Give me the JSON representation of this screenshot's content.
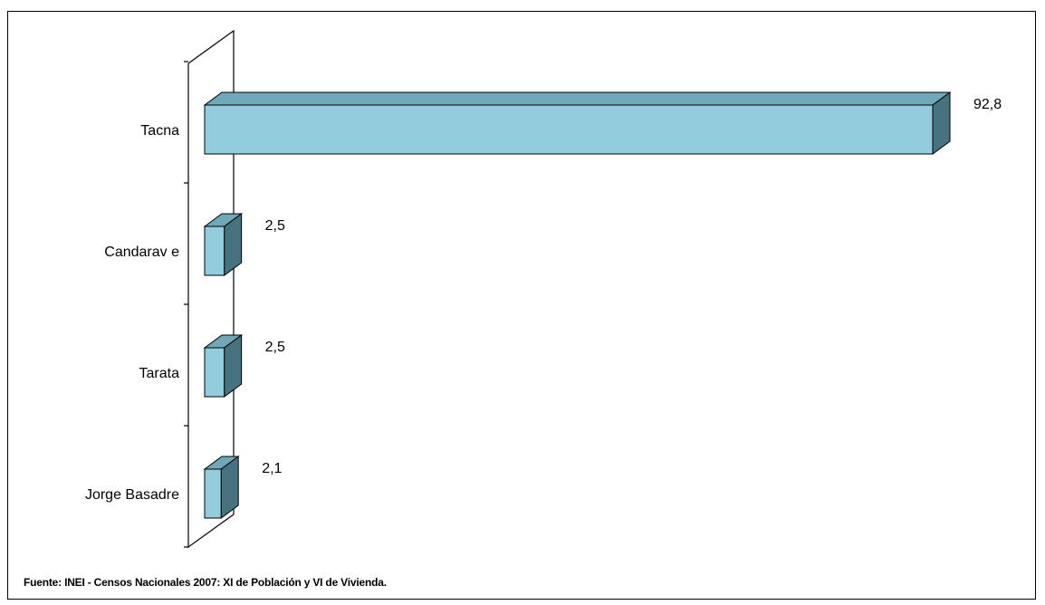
{
  "chart_data": {
    "type": "bar",
    "orientation": "horizontal",
    "style": "3d",
    "categories": [
      "Tacna",
      "Candarav e",
      "Tarata",
      "Jorge Basadre"
    ],
    "values": [
      92.8,
      2.5,
      2.5,
      2.1
    ],
    "value_labels": [
      "92,8",
      "2,5",
      "2,5",
      "2,1"
    ],
    "xlim": [
      0,
      100
    ],
    "grid": false,
    "legend": "none",
    "colors": {
      "bar_front": "#93CDDD",
      "bar_top": "#6FA8B8",
      "bar_side": "#47737E",
      "outline": "#000000"
    }
  },
  "source": "Fuente: INEI - Censos Nacionales 2007: XI de Población y VI de Vivienda."
}
